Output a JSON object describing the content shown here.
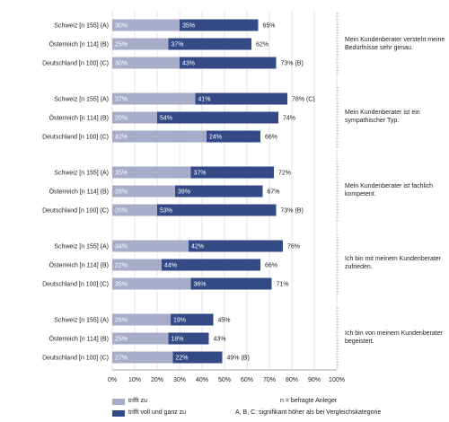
{
  "chart_data": {
    "type": "bar",
    "orientation": "horizontal",
    "stacked": true,
    "xlim": [
      0,
      100
    ],
    "x_ticks": [
      "0%",
      "10%",
      "20%",
      "30%",
      "40%",
      "50%",
      "60%",
      "70%",
      "80%",
      "90%",
      "100%"
    ],
    "colors": {
      "trifft_zu": "#a7acc8",
      "trifft_voll": "#344a86"
    },
    "groups": [
      {
        "statement": "Mein Kundenberater versteht meine Bedürfnisse sehr genau.",
        "rows": [
          {
            "label": "Schweiz [n 155] (A)",
            "trifft_zu": 30,
            "trifft_voll": 35,
            "total": "65%",
            "note": ""
          },
          {
            "label": "Österreich [n 114] (B)",
            "trifft_zu": 25,
            "trifft_voll": 37,
            "total": "62%",
            "note": ""
          },
          {
            "label": "Deutschland [n 100] (C)",
            "trifft_zu": 30,
            "trifft_voll": 43,
            "total": "73%",
            "note": "(B)"
          }
        ]
      },
      {
        "statement": "Mein Kundenberater ist ein sympathischer Typ.",
        "rows": [
          {
            "label": "Schweiz [n 155] (A)",
            "trifft_zu": 37,
            "trifft_voll": 41,
            "total": "78%",
            "note": "(C)"
          },
          {
            "label": "Österreich [n 114] (B)",
            "trifft_zu": 20,
            "trifft_voll": 54,
            "total": "74%",
            "note": ""
          },
          {
            "label": "Deutschland [n 100] (C)",
            "trifft_zu": 42,
            "trifft_voll": 24,
            "total": "66%",
            "note": ""
          }
        ]
      },
      {
        "statement": "Mein Kundenberater ist fachlich kompetent.",
        "rows": [
          {
            "label": "Schweiz [n 155] (A)",
            "trifft_zu": 35,
            "trifft_voll": 37,
            "total": "72%",
            "note": ""
          },
          {
            "label": "Österreich [n 114] (B)",
            "trifft_zu": 28,
            "trifft_voll": 39,
            "total": "67%",
            "note": ""
          },
          {
            "label": "Deutschland [n 100] (C)",
            "trifft_zu": 20,
            "trifft_voll": 53,
            "total": "73%",
            "note": "(B)"
          }
        ]
      },
      {
        "statement": "Ich bin mit meinem Kundenberater zufrieden.",
        "rows": [
          {
            "label": "Schweiz [n 155] (A)",
            "trifft_zu": 34,
            "trifft_voll": 42,
            "total": "76%",
            "note": ""
          },
          {
            "label": "Österreich [n 114] (B)",
            "trifft_zu": 22,
            "trifft_voll": 44,
            "total": "66%",
            "note": ""
          },
          {
            "label": "Deutschland [n 100] (C)",
            "trifft_zu": 35,
            "trifft_voll": 36,
            "total": "71%",
            "note": ""
          }
        ]
      },
      {
        "statement": "Ich bin von meinem Kundenberater begeistert.",
        "rows": [
          {
            "label": "Schweiz [n 155] (A)",
            "trifft_zu": 26,
            "trifft_voll": 19,
            "total": "45%",
            "note": ""
          },
          {
            "label": "Österreich [n 114] (B)",
            "trifft_zu": 25,
            "trifft_voll": 18,
            "total": "43%",
            "note": ""
          },
          {
            "label": "Deutschland [n 100] (C)",
            "trifft_zu": 27,
            "trifft_voll": 22,
            "total": "49%",
            "note": "(B)"
          }
        ]
      }
    ]
  },
  "legend": {
    "trifft_zu": "trifft zu",
    "trifft_voll": "trifft voll und ganz zu",
    "n_note": "n = befragte Anleger",
    "sig_note": "A, B, C: signifikant höher als bei Vergleichskategorie"
  }
}
